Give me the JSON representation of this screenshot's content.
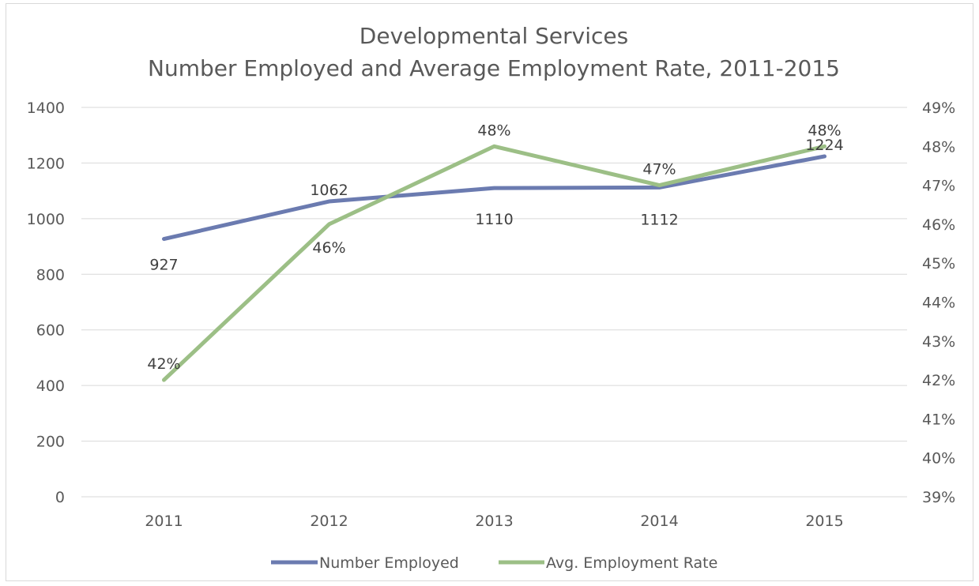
{
  "chart_data": {
    "type": "line",
    "title": "Developmental Services",
    "subtitle": "Number Employed and Average Employment Rate, 2011-2015",
    "categories": [
      "2011",
      "2012",
      "2013",
      "2014",
      "2015"
    ],
    "y_left": {
      "ylim": [
        0,
        1400
      ],
      "ticks": [
        "0",
        "200",
        "400",
        "600",
        "800",
        "1000",
        "1200",
        "1400"
      ]
    },
    "y_right": {
      "ylim": [
        0.39,
        0.49
      ],
      "ticks": [
        "39%",
        "40%",
        "41%",
        "42%",
        "43%",
        "44%",
        "45%",
        "46%",
        "47%",
        "48%",
        "49%"
      ]
    },
    "grid": true,
    "legend_position": "bottom",
    "series": [
      {
        "name": "Number Employed",
        "axis": "left",
        "color": "#6b7bb0",
        "values": [
          927,
          1062,
          1110,
          1112,
          1224
        ],
        "labels": [
          "927",
          "1062",
          "1110",
          "1112",
          "1224"
        ]
      },
      {
        "name": "Avg. Employment Rate",
        "axis": "right",
        "color": "#9cbf86",
        "values": [
          0.42,
          0.46,
          0.48,
          0.47,
          0.48
        ],
        "labels": [
          "42%",
          "46%",
          "48%",
          "47%",
          "48%"
        ]
      }
    ]
  }
}
